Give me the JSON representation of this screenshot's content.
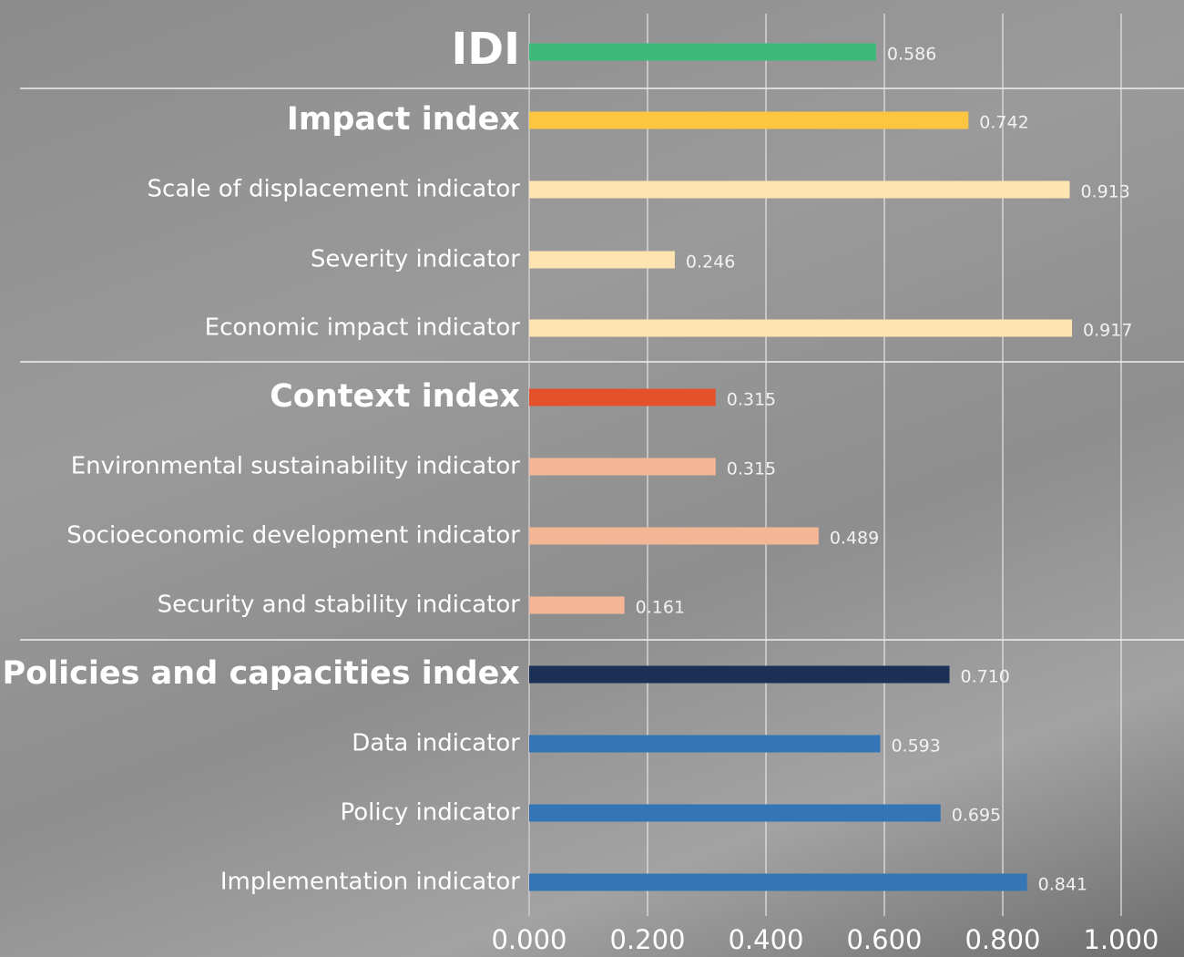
{
  "chart_data": {
    "type": "bar",
    "orientation": "horizontal",
    "categories": [
      "IDI",
      "Impact index",
      "Scale of displacement indicator",
      "Severity indicator",
      "Economic impact indicator",
      "Context index",
      "Environmental sustainability indicator",
      "Socioeconomic development indicator",
      "Security and stability indicator",
      "Policies and capacities index",
      "Data indicator",
      "Policy indicator",
      "Implementation indicator"
    ],
    "values": [
      0.586,
      0.742,
      0.913,
      0.246,
      0.917,
      0.315,
      0.315,
      0.489,
      0.161,
      0.71,
      0.593,
      0.695,
      0.841
    ],
    "value_labels": [
      "0.586",
      "0.742",
      "0.913",
      "0.246",
      "0.917",
      "0.315",
      "0.315",
      "0.489",
      "0.161",
      "0.710",
      "0.593",
      "0.695",
      "0.841"
    ],
    "colors": [
      "#3dba7a",
      "#fdc640",
      "#fde4b0",
      "#fde4b0",
      "#fde4b0",
      "#e5522a",
      "#f5b597",
      "#f5b597",
      "#f5b597",
      "#1b2f57",
      "#3674b8",
      "#3674b8",
      "#3674b8"
    ],
    "xlim": [
      0,
      1
    ],
    "xticks": [
      {
        "value": 0,
        "label": "0.000"
      },
      {
        "value": 0.2,
        "label": "0.200"
      },
      {
        "value": 0.4,
        "label": "0.400"
      },
      {
        "value": 0.6,
        "label": "0.600"
      },
      {
        "value": 0.8,
        "label": "0.800"
      },
      {
        "value": 1,
        "label": "1.000"
      }
    ],
    "grid": true
  }
}
